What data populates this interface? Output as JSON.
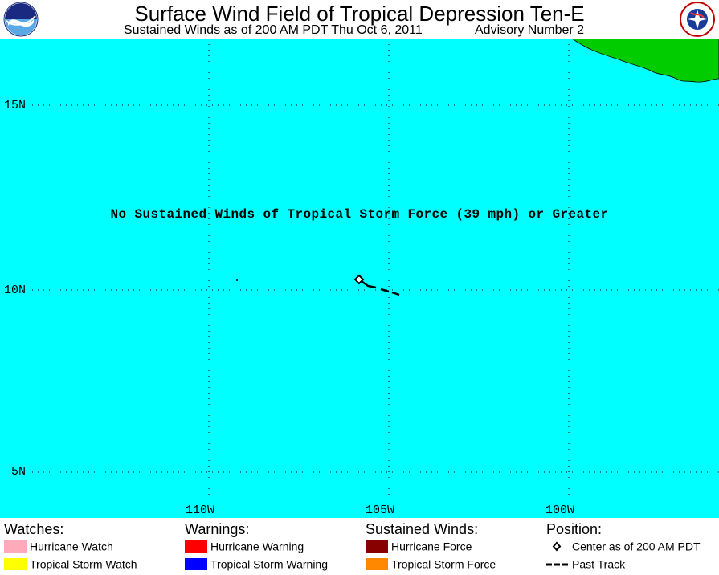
{
  "header": {
    "title": "Surface Wind Field of Tropical Depression Ten-E",
    "subtitle_left": "Sustained Winds as of 200 AM PDT Thu Oct 6, 2011",
    "subtitle_right": "Advisory Number 2",
    "logo_left_text": "NOAA",
    "logo_right_text": "NATIONAL WEATHER SERVICE"
  },
  "map": {
    "ocean_color": "#00ffff",
    "land_color": "#00cc00",
    "latitude_labels": [
      "15N",
      "10N",
      "5N"
    ],
    "longitude_labels": [
      "110W",
      "105W",
      "100W"
    ],
    "message": "No Sustained Winds of Tropical Storm Force (39 mph) or Greater",
    "storm_center": {
      "lat": 10.3,
      "lon": -105.8
    }
  },
  "legend": {
    "watches": {
      "heading": "Watches:",
      "items": [
        {
          "label": "Hurricane Watch",
          "color": "#ffaabb"
        },
        {
          "label": "Tropical Storm Watch",
          "color": "#ffff00"
        }
      ]
    },
    "warnings": {
      "heading": "Warnings:",
      "items": [
        {
          "label": "Hurricane Warning",
          "color": "#ff0000"
        },
        {
          "label": "Tropical Storm Warning",
          "color": "#0000ff"
        }
      ]
    },
    "sustained_winds": {
      "heading": "Sustained Winds:",
      "items": [
        {
          "label": "Hurricane Force",
          "color": "#880000"
        },
        {
          "label": "Tropical Storm Force",
          "color": "#ff8800"
        }
      ]
    },
    "position": {
      "heading": "Position:",
      "items": [
        {
          "label": "Center as of 200 AM PDT",
          "icon": "diamond-icon"
        },
        {
          "label": "Past Track",
          "icon": "dashed-line-icon"
        }
      ]
    }
  }
}
